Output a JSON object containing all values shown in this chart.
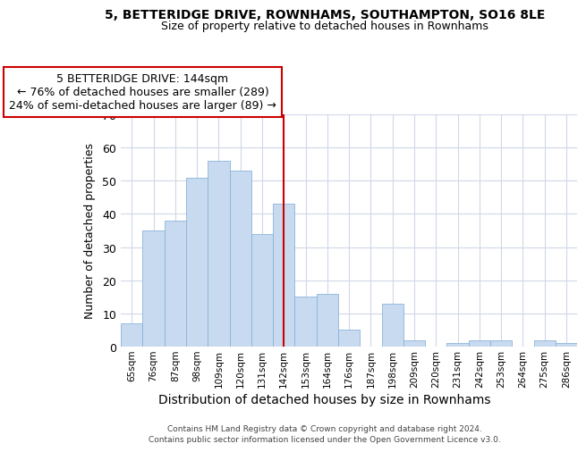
{
  "title": "5, BETTERIDGE DRIVE, ROWNHAMS, SOUTHAMPTON, SO16 8LE",
  "subtitle": "Size of property relative to detached houses in Rownhams",
  "xlabel": "Distribution of detached houses by size in Rownhams",
  "ylabel": "Number of detached properties",
  "bar_labels": [
    "65sqm",
    "76sqm",
    "87sqm",
    "98sqm",
    "109sqm",
    "120sqm",
    "131sqm",
    "142sqm",
    "153sqm",
    "164sqm",
    "176sqm",
    "187sqm",
    "198sqm",
    "209sqm",
    "220sqm",
    "231sqm",
    "242sqm",
    "253sqm",
    "264sqm",
    "275sqm",
    "286sqm"
  ],
  "bar_heights": [
    7,
    35,
    38,
    51,
    56,
    53,
    34,
    43,
    15,
    16,
    5,
    0,
    13,
    2,
    0,
    1,
    2,
    2,
    0,
    2,
    1
  ],
  "bar_color": "#c8daf0",
  "bar_edge_color": "#8ab4d8",
  "highlight_index": 7,
  "highlight_line_color": "#cc0000",
  "ylim": [
    0,
    70
  ],
  "yticks": [
    0,
    10,
    20,
    30,
    40,
    50,
    60,
    70
  ],
  "annotation_title": "5 BETTERIDGE DRIVE: 144sqm",
  "annotation_line1": "← 76% of detached houses are smaller (289)",
  "annotation_line2": "24% of semi-detached houses are larger (89) →",
  "annotation_box_color": "#ffffff",
  "annotation_box_edge": "#cc0000",
  "footer_line1": "Contains HM Land Registry data © Crown copyright and database right 2024.",
  "footer_line2": "Contains public sector information licensed under the Open Government Licence v3.0.",
  "background_color": "#ffffff",
  "grid_color": "#d0d8e8"
}
